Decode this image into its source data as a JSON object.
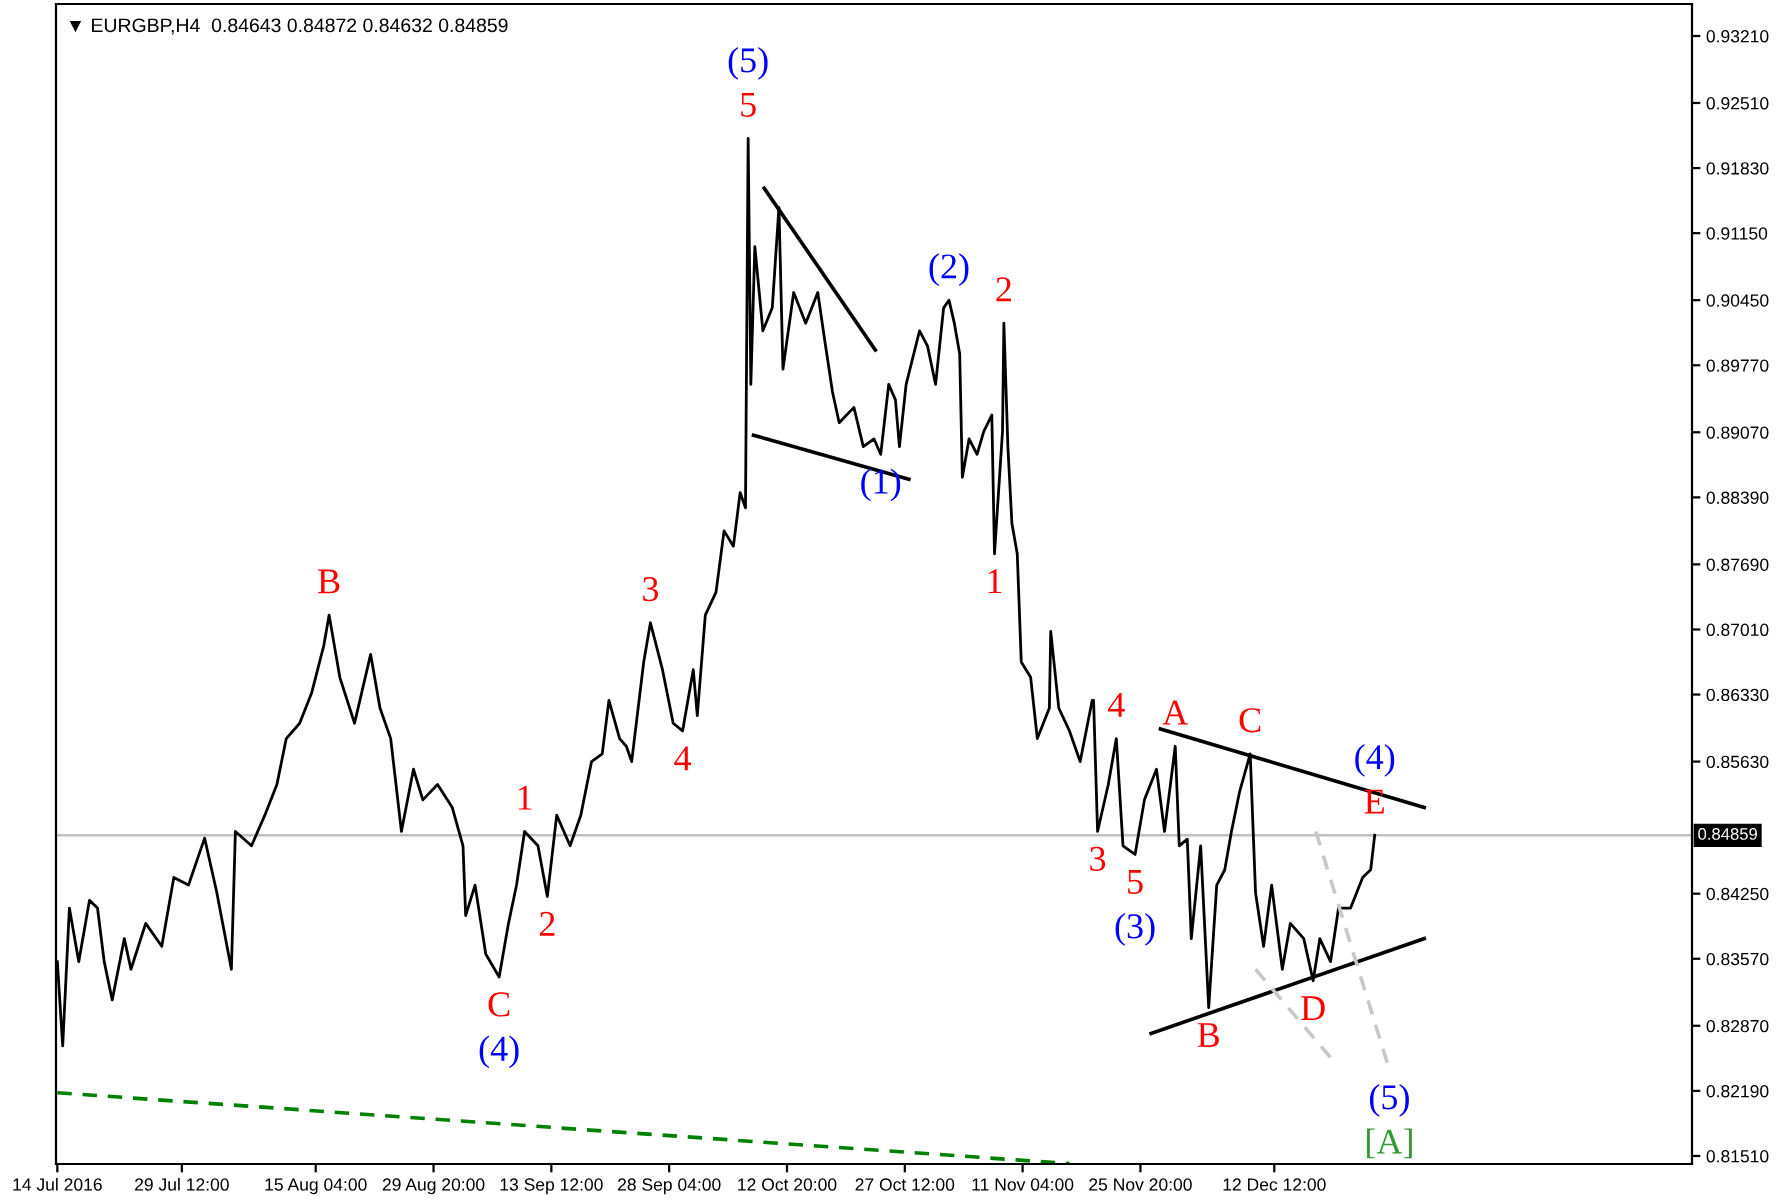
{
  "chart_data": {
    "type": "line",
    "title": "▼ EURGBP,H4  0.84643 0.84872 0.84632 0.84859",
    "xlim": [
      "2016-07-13T20:00",
      "2017-02-02T12:00"
    ],
    "ylim": [
      0.81426,
      0.93544
    ],
    "xticks": [
      {
        "value": "2016-07-14",
        "label": "14 Jul 2016"
      },
      {
        "value": "2016-07-29T12:00",
        "label": "29 Jul 12:00"
      },
      {
        "value": "2016-08-15T04:00",
        "label": "15 Aug 04:00"
      },
      {
        "value": "2016-08-29T20:00",
        "label": "29 Aug 20:00"
      },
      {
        "value": "2016-09-13T12:00",
        "label": "13 Sep 12:00"
      },
      {
        "value": "2016-09-28T04:00",
        "label": "28 Sep 04:00"
      },
      {
        "value": "2016-10-12T20:00",
        "label": "12 Oct 20:00"
      },
      {
        "value": "2016-10-27T12:00",
        "label": "27 Oct 12:00"
      },
      {
        "value": "2016-11-11T04:00",
        "label": "11 Nov 04:00"
      },
      {
        "value": "2016-11-25T20:00",
        "label": "25 Nov 20:00"
      },
      {
        "value": "2016-12-12T12:00",
        "label": "12 Dec 12:00"
      }
    ],
    "yticks": [
      {
        "value": 0.9321,
        "label": "0.93210"
      },
      {
        "value": 0.9251,
        "label": "0.92510"
      },
      {
        "value": 0.9183,
        "label": "0.91830"
      },
      {
        "value": 0.9115,
        "label": "0.91150"
      },
      {
        "value": 0.9045,
        "label": "0.90450"
      },
      {
        "value": 0.8977,
        "label": "0.89770"
      },
      {
        "value": 0.8907,
        "label": "0.89070"
      },
      {
        "value": 0.8839,
        "label": "0.88390"
      },
      {
        "value": 0.8769,
        "label": "0.87690"
      },
      {
        "value": 0.8701,
        "label": "0.87010"
      },
      {
        "value": 0.8633,
        "label": "0.86330"
      },
      {
        "value": 0.8563,
        "label": "0.85630"
      },
      {
        "value": 0.8425,
        "label": "0.84250"
      },
      {
        "value": 0.8357,
        "label": "0.83570"
      },
      {
        "value": 0.8287,
        "label": "0.82870"
      },
      {
        "value": 0.8219,
        "label": "0.82190"
      },
      {
        "value": 0.8151,
        "label": "0.81510"
      }
    ],
    "grid": false,
    "legend": false,
    "marker": "none",
    "series": [
      {
        "color": "#000000",
        "line_style": "solid",
        "x": [
          "2016-07-14T00:00",
          "2016-07-14T16:00",
          "2016-07-15T12:00",
          "2016-07-16T16:00",
          "2016-07-18T00:00",
          "2016-07-19T00:00",
          "2016-07-19T20:00",
          "2016-07-20T20:00",
          "2016-07-22T08:00",
          "2016-07-23T04:00",
          "2016-07-25T00:00",
          "2016-07-27T00:00",
          "2016-07-28T12:00",
          "2016-07-30T08:00",
          "2016-08-01T08:00",
          "2016-08-02T20:00",
          "2016-08-04T16:00",
          "2016-08-05T04:00",
          "2016-08-07T04:00",
          "2016-08-08T20:00",
          "2016-08-10T08:00",
          "2016-08-11T12:00",
          "2016-08-13T04:00",
          "2016-08-14T16:00",
          "2016-08-16T04:00",
          "2016-08-16T20:00",
          "2016-08-18T04:00",
          "2016-08-20T00:00",
          "2016-08-22T00:00",
          "2016-08-23T04:00",
          "2016-08-24T12:00",
          "2016-08-25T20:00",
          "2016-08-27T08:00",
          "2016-08-28T12:00",
          "2016-08-30T08:00",
          "2016-09-01T04:00",
          "2016-09-02T12:00",
          "2016-09-02T20:00",
          "2016-09-04T00:00",
          "2016-09-05T08:00",
          "2016-09-07T00:00",
          "2016-09-08T04:00",
          "2016-09-09T04:00",
          "2016-09-10T04:00",
          "2016-09-11T20:00",
          "2016-09-13T00:00",
          "2016-09-14T04:00",
          "2016-09-15T20:00",
          "2016-09-17T04:00",
          "2016-09-18T12:00",
          "2016-09-19T20:00",
          "2016-09-20T16:00",
          "2016-09-22T00:00",
          "2016-09-22T20:00",
          "2016-09-23T12:00",
          "2016-09-25T00:00",
          "2016-09-25T20:00",
          "2016-09-27T08:00",
          "2016-09-28T16:00",
          "2016-09-29T20:00",
          "2016-10-01T04:00",
          "2016-10-01T16:00",
          "2016-10-02T16:00",
          "2016-10-04T00:00",
          "2016-10-05T00:00",
          "2016-10-06T04:00",
          "2016-10-07T00:00",
          "2016-10-07T16:00",
          "2016-10-08T00:00",
          "2016-10-08T08:00",
          "2016-10-08T20:00",
          "2016-10-09T20:00",
          "2016-10-11T00:00",
          "2016-10-11T20:00",
          "2016-10-12T08:00",
          "2016-10-13T16:00",
          "2016-10-15T04:00",
          "2016-10-16T16:00",
          "2016-10-17T12:00",
          "2016-10-18T12:00",
          "2016-10-19T08:00",
          "2016-10-21T04:00",
          "2016-10-22T08:00",
          "2016-10-23T16:00",
          "2016-10-24T12:00",
          "2016-10-25T12:00",
          "2016-10-26T08:00",
          "2016-10-26T20:00",
          "2016-10-27T16:00",
          "2016-10-29T08:00",
          "2016-10-30T08:00",
          "2016-10-31T08:00",
          "2016-11-01T08:00",
          "2016-11-02T00:00",
          "2016-11-02T16:00",
          "2016-11-03T08:00",
          "2016-11-03T16:00",
          "2016-11-04T12:00",
          "2016-11-05T12:00",
          "2016-11-06T08:00",
          "2016-11-07T08:00",
          "2016-11-07T16:00",
          "2016-11-08T16:00",
          "2016-11-08T20:00",
          "2016-11-09T08:00",
          "2016-11-09T20:00",
          "2016-11-10T12:00",
          "2016-11-11T00:00",
          "2016-11-12T04:00",
          "2016-11-13T00:00",
          "2016-11-14T12:00",
          "2016-11-14T16:00",
          "2016-11-15T16:00",
          "2016-11-17T00:00",
          "2016-11-18T08:00",
          "2016-11-19T20:00",
          "2016-11-20T00:00",
          "2016-11-20T12:00",
          "2016-11-21T20:00",
          "2016-11-22T20:00",
          "2016-11-23T16:00",
          "2016-11-25T04:00",
          "2016-11-26T08:00",
          "2016-11-27T20:00",
          "2016-11-28T20:00",
          "2016-11-30T04:00",
          "2016-11-30T16:00",
          "2016-12-01T16:00",
          "2016-12-02T04:00",
          "2016-12-03T08:00",
          "2016-12-04T08:00",
          "2016-12-05T08:00",
          "2016-12-06T08:00",
          "2016-12-07T04:00",
          "2016-12-08T04:00",
          "2016-12-09T12:00",
          "2016-12-10T04:00",
          "2016-12-11T04:00",
          "2016-12-12T04:00",
          "2016-12-13T12:00",
          "2016-12-14T12:00",
          "2016-12-16T04:00",
          "2016-12-17T08:00",
          "2016-12-18T04:00",
          "2016-12-19T12:00",
          "2016-12-20T12:00",
          "2016-12-22T00:00",
          "2016-12-23T12:00",
          "2016-12-24T12:00",
          "2016-12-25T00:00"
        ],
        "values": [
          0.8354,
          0.8266,
          0.841,
          0.8354,
          0.8418,
          0.841,
          0.8354,
          0.8314,
          0.8378,
          0.8346,
          0.8394,
          0.837,
          0.8442,
          0.8434,
          0.8483,
          0.8427,
          0.8346,
          0.849,
          0.8475,
          0.8507,
          0.8539,
          0.8587,
          0.8603,
          0.8635,
          0.8684,
          0.8716,
          0.8651,
          0.8603,
          0.8675,
          0.8619,
          0.8587,
          0.849,
          0.8555,
          0.8523,
          0.8539,
          0.8515,
          0.8475,
          0.8402,
          0.8434,
          0.8362,
          0.8338,
          0.8394,
          0.8434,
          0.849,
          0.8475,
          0.8422,
          0.8507,
          0.8475,
          0.8507,
          0.8563,
          0.8571,
          0.8627,
          0.8587,
          0.8579,
          0.8563,
          0.8667,
          0.8708,
          0.8659,
          0.8603,
          0.8595,
          0.8659,
          0.8611,
          0.8716,
          0.874,
          0.8804,
          0.8788,
          0.8844,
          0.8828,
          0.9214,
          0.8957,
          0.9101,
          0.9013,
          0.9037,
          0.9142,
          0.8973,
          0.9053,
          0.9021,
          0.9053,
          0.9005,
          0.8949,
          0.8917,
          0.8933,
          0.8892,
          0.89,
          0.8884,
          0.8957,
          0.8941,
          0.8892,
          0.8957,
          0.9013,
          0.8997,
          0.8957,
          0.9037,
          0.9045,
          0.9021,
          0.8989,
          0.886,
          0.89,
          0.8884,
          0.8908,
          0.8925,
          0.878,
          0.8908,
          0.9021,
          0.8892,
          0.8812,
          0.878,
          0.8667,
          0.8651,
          0.8587,
          0.8619,
          0.8699,
          0.8619,
          0.8595,
          0.8563,
          0.8627,
          0.8627,
          0.849,
          0.8539,
          0.8587,
          0.8475,
          0.8466,
          0.8523,
          0.8555,
          0.849,
          0.8579,
          0.8475,
          0.8482,
          0.8378,
          0.8475,
          0.8306,
          0.8434,
          0.845,
          0.849,
          0.8531,
          0.8571,
          0.8426,
          0.837,
          0.8434,
          0.8346,
          0.8394,
          0.8378,
          0.8334,
          0.8378,
          0.8354,
          0.841,
          0.841,
          0.8442,
          0.845,
          0.8486
        ]
      },
      {
        "color": "#000000",
        "line_style": "solid",
        "x": [
          "2016-10-10T00:00",
          "2016-10-23T20:00"
        ],
        "values": [
          0.9162,
          0.8993
        ]
      },
      {
        "color": "#000000",
        "line_style": "solid",
        "x": [
          "2016-10-08T16:00",
          "2016-10-28T00:00"
        ],
        "values": [
          0.8904,
          0.8858
        ]
      },
      {
        "color": "#000000",
        "line_style": "solid",
        "x": [
          "2016-11-28T08:00",
          "2016-12-31T04:00"
        ],
        "values": [
          0.8597,
          0.8515
        ]
      },
      {
        "color": "#000000",
        "line_style": "solid",
        "x": [
          "2016-11-27T04:00",
          "2016-12-31T04:00"
        ],
        "values": [
          0.8279,
          0.8378
        ]
      },
      {
        "color": "#008000",
        "line_style": "dashed",
        "x": [
          "2016-07-14T00:00",
          "2016-11-17T00:00"
        ],
        "values": [
          0.8217,
          0.8143
        ]
      },
      {
        "color": "#c8c8c8",
        "line_style": "dashed",
        "x": [
          "2016-12-10T04:00",
          "2016-12-20T00:00"
        ],
        "values": [
          0.8346,
          0.8249
        ]
      },
      {
        "color": "#c8c8c8",
        "line_style": "dashed",
        "x": [
          "2016-12-17T16:00",
          "2016-12-26T20:00"
        ],
        "values": [
          0.849,
          0.8241
        ]
      }
    ],
    "ref_lines": [
      {
        "axis": "y",
        "value": 0.84859,
        "label": "0.84859",
        "color": "#c0c0c0",
        "line_style": "solid"
      }
    ],
    "annotations": [
      {
        "text": "B",
        "x": "2016-08-16T20:00",
        "y": 0.8716
      },
      {
        "text": "1",
        "x": "2016-09-10T04:00",
        "y": 0.849
      },
      {
        "text": "2",
        "x": "2016-09-13T00:00",
        "y": 0.8422
      },
      {
        "text": "C",
        "x": "2016-09-07T00:00",
        "y": 0.8338
      },
      {
        "text": "(4)",
        "x": "2016-09-07T00:00",
        "y": 0.8338
      },
      {
        "text": "3",
        "x": "2016-09-25T20:00",
        "y": 0.8708
      },
      {
        "text": "4",
        "x": "2016-09-29T20:00",
        "y": 0.8595
      },
      {
        "text": "5",
        "x": "2016-10-08T00:00",
        "y": 0.9214
      },
      {
        "text": "(5)",
        "x": "2016-10-08T00:00",
        "y": 0.9214
      },
      {
        "text": "(1)",
        "x": "2016-10-24T12:00",
        "y": 0.8884
      },
      {
        "text": "(2)",
        "x": "2016-11-02T00:00",
        "y": 0.9045
      },
      {
        "text": "2",
        "x": "2016-11-08T20:00",
        "y": 0.9021
      },
      {
        "text": "1",
        "x": "2016-11-07T16:00",
        "y": 0.878
      },
      {
        "text": "4",
        "x": "2016-11-22T20:00",
        "y": 0.8587
      },
      {
        "text": "3",
        "x": "2016-11-20T12:00",
        "y": 0.849
      },
      {
        "text": "5",
        "x": "2016-11-25T04:00",
        "y": 0.8466
      },
      {
        "text": "(3)",
        "x": "2016-11-25T04:00",
        "y": 0.8466
      },
      {
        "text": "A",
        "x": "2016-11-30T04:00",
        "y": 0.8579
      },
      {
        "text": "C",
        "x": "2016-12-09T12:00",
        "y": 0.8571
      },
      {
        "text": "E",
        "x": "2016-12-25T00:00",
        "y": 0.8486
      },
      {
        "text": "(4)",
        "x": "2016-12-25T00:00",
        "y": 0.8486
      },
      {
        "text": "B",
        "x": "2016-12-04T08:00",
        "y": 0.8306
      },
      {
        "text": "D",
        "x": "2016-12-17T08:00",
        "y": 0.8334
      },
      {
        "text": "(5)",
        "x": "2016-12-26T20:00",
        "y": 0.8241
      },
      {
        "text": "[A]",
        "x": "2016-12-26T20:00",
        "y": 0.8241
      }
    ]
  }
}
